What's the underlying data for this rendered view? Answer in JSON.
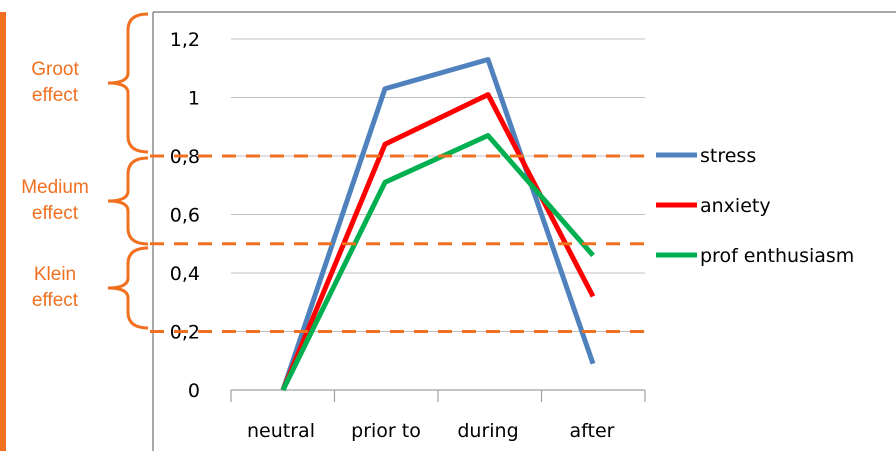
{
  "chart_data": {
    "type": "line",
    "categories": [
      "neutral",
      "prior to",
      "during",
      "after"
    ],
    "series": [
      {
        "name": "stress",
        "values": [
          0,
          1.03,
          1.13,
          0.09
        ],
        "color": "#4f81bd"
      },
      {
        "name": "anxiety",
        "values": [
          0,
          0.84,
          1.01,
          0.32
        ],
        "color": "#ff0000"
      },
      {
        "name": "prof enthusiasm",
        "values": [
          0,
          0.71,
          0.87,
          0.46
        ],
        "color": "#00b050"
      }
    ],
    "yticks": [
      "0",
      "0,2",
      "0,4",
      "0,6",
      "0,8",
      "1",
      "1,2"
    ],
    "ylim": [
      0,
      1.2
    ],
    "grid": true,
    "legend": "right",
    "effect_thresholds": [
      0.2,
      0.5,
      0.8
    ],
    "effect_bands": [
      {
        "label_line1": "Groot",
        "label_line2": "effect",
        "from": 0.8,
        "to": 1.2
      },
      {
        "label_line1": "Medium",
        "label_line2": "effect",
        "from": 0.5,
        "to": 0.8
      },
      {
        "label_line1": "Klein",
        "label_line2": "effect",
        "from": 0.2,
        "to": 0.5
      }
    ],
    "annotation_color": "#f07020"
  }
}
